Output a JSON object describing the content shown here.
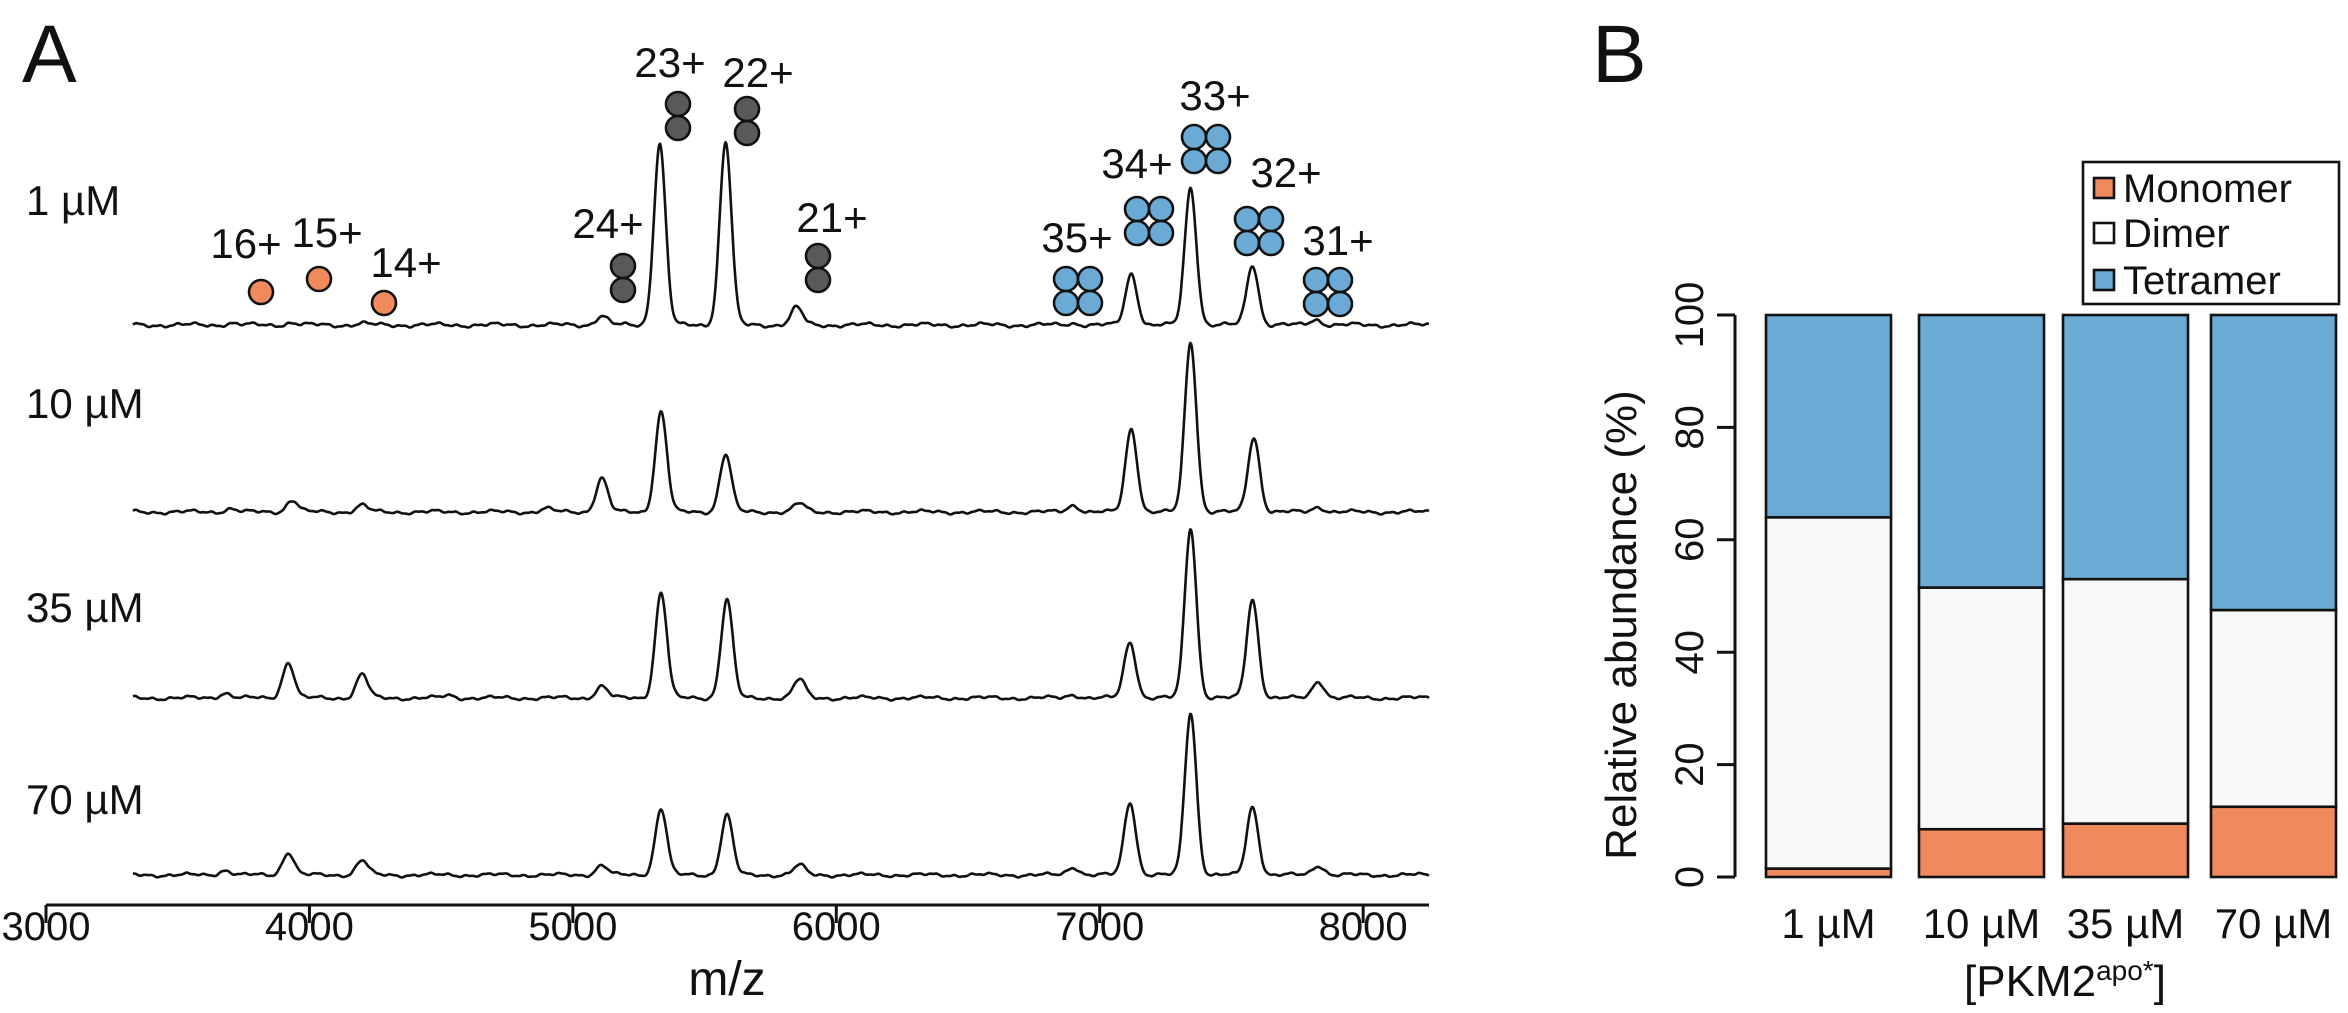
{
  "panels": {
    "a": "A",
    "b": "B"
  },
  "colors": {
    "monomer": "#f08a5d",
    "dimer": "#595959",
    "dimer_bar": "#f7f9fb",
    "tetramer": "#6aaad4"
  },
  "chart_data": [
    {
      "type": "line",
      "panel": "A",
      "xlabel": "m/z",
      "ylabel": "",
      "xlim": [
        3000,
        8250
      ],
      "xticks": [
        3000,
        4000,
        5000,
        6000,
        7000,
        8000
      ],
      "y_units": "relative intensity (each trace normalized to its tallest peak = 1)",
      "series": [
        {
          "name": "1 µM",
          "noise": 0.015,
          "peaks": [
            {
              "mz": 3700,
              "h": 0.01
            },
            {
              "mz": 3930,
              "h": 0.012
            },
            {
              "mz": 4200,
              "h": 0.008
            },
            {
              "mz": 5110,
              "h": 0.05
            },
            {
              "mz": 5330,
              "h": 0.99
            },
            {
              "mz": 5580,
              "h": 1.0
            },
            {
              "mz": 5850,
              "h": 0.095
            },
            {
              "mz": 6900,
              "h": 0.01
            },
            {
              "mz": 7120,
              "h": 0.28
            },
            {
              "mz": 7345,
              "h": 0.75
            },
            {
              "mz": 7580,
              "h": 0.33
            },
            {
              "mz": 7820,
              "h": 0.03
            }
          ]
        },
        {
          "name": "10 µM",
          "noise": 0.015,
          "peaks": [
            {
              "mz": 3700,
              "h": 0.02
            },
            {
              "mz": 3935,
              "h": 0.07
            },
            {
              "mz": 4200,
              "h": 0.04
            },
            {
              "mz": 4900,
              "h": 0.02
            },
            {
              "mz": 5110,
              "h": 0.2
            },
            {
              "mz": 5335,
              "h": 0.59
            },
            {
              "mz": 5580,
              "h": 0.34
            },
            {
              "mz": 5860,
              "h": 0.05
            },
            {
              "mz": 6900,
              "h": 0.04
            },
            {
              "mz": 7120,
              "h": 0.49
            },
            {
              "mz": 7345,
              "h": 1.0
            },
            {
              "mz": 7585,
              "h": 0.44
            },
            {
              "mz": 7830,
              "h": 0.03
            }
          ]
        },
        {
          "name": "35 µM",
          "noise": 0.015,
          "peaks": [
            {
              "mz": 3680,
              "h": 0.03
            },
            {
              "mz": 3920,
              "h": 0.21
            },
            {
              "mz": 4200,
              "h": 0.14
            },
            {
              "mz": 4530,
              "h": 0.015
            },
            {
              "mz": 5110,
              "h": 0.07
            },
            {
              "mz": 5335,
              "h": 0.62
            },
            {
              "mz": 5585,
              "h": 0.58
            },
            {
              "mz": 5860,
              "h": 0.11
            },
            {
              "mz": 6900,
              "h": 0.02
            },
            {
              "mz": 7115,
              "h": 0.33
            },
            {
              "mz": 7345,
              "h": 1.0
            },
            {
              "mz": 7580,
              "h": 0.58
            },
            {
              "mz": 7830,
              "h": 0.1
            }
          ]
        },
        {
          "name": "70 µM",
          "noise": 0.015,
          "peaks": [
            {
              "mz": 3680,
              "h": 0.03
            },
            {
              "mz": 3920,
              "h": 0.14
            },
            {
              "mz": 4200,
              "h": 0.09
            },
            {
              "mz": 5110,
              "h": 0.06
            },
            {
              "mz": 5335,
              "h": 0.41
            },
            {
              "mz": 5585,
              "h": 0.37
            },
            {
              "mz": 5860,
              "h": 0.06
            },
            {
              "mz": 6900,
              "h": 0.05
            },
            {
              "mz": 7115,
              "h": 0.45
            },
            {
              "mz": 7345,
              "h": 1.0
            },
            {
              "mz": 7580,
              "h": 0.42
            },
            {
              "mz": 7830,
              "h": 0.06
            }
          ]
        }
      ],
      "annotations": [
        {
          "label": "16+",
          "mz": 3700,
          "species": "monomer"
        },
        {
          "label": "15+",
          "mz": 3930,
          "species": "monomer"
        },
        {
          "label": "14+",
          "mz": 4200,
          "species": "monomer"
        },
        {
          "label": "24+",
          "mz": 5110,
          "species": "dimer"
        },
        {
          "label": "23+",
          "mz": 5330,
          "species": "dimer"
        },
        {
          "label": "22+",
          "mz": 5580,
          "species": "dimer"
        },
        {
          "label": "21+",
          "mz": 5850,
          "species": "dimer"
        },
        {
          "label": "35+",
          "mz": 6900,
          "species": "tetramer"
        },
        {
          "label": "34+",
          "mz": 7120,
          "species": "tetramer"
        },
        {
          "label": "33+",
          "mz": 7345,
          "species": "tetramer"
        },
        {
          "label": "32+",
          "mz": 7580,
          "species": "tetramer"
        },
        {
          "label": "31+",
          "mz": 7820,
          "species": "tetramer"
        }
      ]
    },
    {
      "type": "bar",
      "panel": "B",
      "stacked": true,
      "categories": [
        "1 µM",
        "10 µM",
        "35 µM",
        "70 µM"
      ],
      "xlabel_main": "[PKM2",
      "xlabel_sup": "apo*",
      "xlabel_end": "]",
      "ylabel": "Relative abundance (%)",
      "ylim": [
        0,
        100
      ],
      "yticks": [
        0,
        20,
        40,
        60,
        80,
        100
      ],
      "legend_position": "top-right",
      "series": [
        {
          "name": "Monomer",
          "values": [
            1.5,
            8.5,
            9.5,
            12.5
          ]
        },
        {
          "name": "Dimer",
          "values": [
            62.5,
            43,
            43.5,
            35
          ]
        },
        {
          "name": "Tetramer",
          "values": [
            36,
            48.5,
            47,
            52.5
          ]
        }
      ]
    }
  ]
}
